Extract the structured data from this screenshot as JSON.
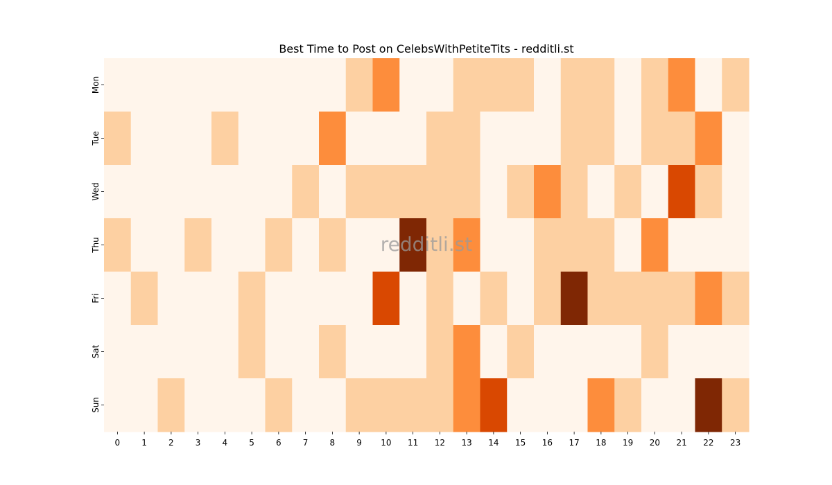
{
  "chart_data": {
    "type": "heatmap",
    "title": "Best Time to Post on CelebsWithPetiteTits - redditli.st",
    "watermark": "redditli.st",
    "x_categories": [
      "0",
      "1",
      "2",
      "3",
      "4",
      "5",
      "6",
      "7",
      "8",
      "9",
      "10",
      "11",
      "12",
      "13",
      "14",
      "15",
      "16",
      "17",
      "18",
      "19",
      "20",
      "21",
      "22",
      "23"
    ],
    "y_categories": [
      "Mon",
      "Tue",
      "Wed",
      "Thu",
      "Fri",
      "Sat",
      "Sun"
    ],
    "values": [
      [
        0,
        0,
        0,
        0,
        0,
        0,
        0,
        0,
        0,
        1,
        2,
        0,
        0,
        1,
        1,
        1,
        0,
        1,
        1,
        0,
        1,
        2,
        0,
        1
      ],
      [
        1,
        0,
        0,
        0,
        1,
        0,
        0,
        0,
        2,
        0,
        0,
        0,
        1,
        1,
        0,
        0,
        0,
        1,
        1,
        0,
        1,
        1,
        2,
        0
      ],
      [
        0,
        0,
        0,
        0,
        0,
        0,
        0,
        1,
        0,
        1,
        1,
        1,
        1,
        1,
        0,
        1,
        2,
        1,
        0,
        1,
        0,
        3,
        1,
        0
      ],
      [
        1,
        0,
        0,
        1,
        0,
        0,
        1,
        0,
        1,
        0,
        0,
        4,
        1,
        2,
        0,
        0,
        1,
        1,
        1,
        0,
        2,
        0,
        0,
        0
      ],
      [
        0,
        1,
        0,
        0,
        0,
        1,
        0,
        0,
        0,
        0,
        3,
        0,
        1,
        0,
        1,
        0,
        1,
        4,
        1,
        1,
        1,
        1,
        2,
        1
      ],
      [
        0,
        0,
        0,
        0,
        0,
        1,
        0,
        0,
        1,
        0,
        0,
        0,
        1,
        2,
        0,
        1,
        0,
        0,
        0,
        0,
        1,
        0,
        0,
        0
      ],
      [
        0,
        0,
        1,
        0,
        0,
        0,
        1,
        0,
        0,
        1,
        1,
        1,
        1,
        2,
        3,
        0,
        0,
        0,
        2,
        1,
        0,
        0,
        4,
        1
      ]
    ],
    "colors": [
      "#fff5eb",
      "#fdd0a2",
      "#fd8d3c",
      "#d94801",
      "#7f2704"
    ],
    "colorbar": false,
    "grid": false
  }
}
